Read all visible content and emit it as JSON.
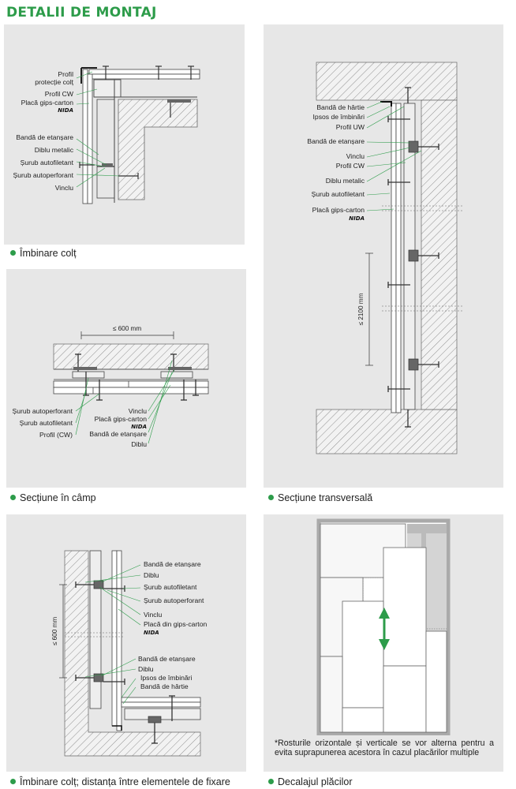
{
  "page": {
    "title": "DETALII DE MONTAJ",
    "accent": "#2d9c4a"
  },
  "brand": "NIDA",
  "panels": {
    "p1": {
      "caption": "Îmbinare colț",
      "labels": [
        "Profil",
        "protecție colț",
        "Profil CW",
        "Placă gips-carton",
        "Bandă de etanșare",
        "Diblu metalic",
        "Șurub autofiletant",
        "Șurub autoperforant",
        "Vinclu"
      ]
    },
    "p2": {
      "caption": "Secțiune în câmp",
      "dimension": "≤ 600 mm",
      "labels_left": [
        "Șurub autoperforant",
        "Șurub autofiletant",
        "Profil (CW)"
      ],
      "labels_right": [
        "Vinclu",
        "Placă gips-carton",
        "Bandă de etanșare",
        "Diblu"
      ]
    },
    "p3": {
      "caption": "Secțiune transversală",
      "dimension": "≤ 2100 mm",
      "labels": [
        "Bandă de hârtie",
        "Ipsos de îmbinări",
        "Profil UW",
        "Bandă de etanșare",
        "Vinclu",
        "Profil CW",
        "Diblu metalic",
        "Șurub autofiletant",
        "Placă gips-carton"
      ]
    },
    "p4": {
      "caption": "Îmbinare colț; distanța între elementele de fixare",
      "dimension": "≤ 600 mm",
      "labels_top": [
        "Bandă de etanșare",
        "Diblu",
        "Șurub autofiletant",
        "Șurub autoperforant",
        "Vinclu",
        "Placă din gips-carton"
      ],
      "labels_bottom": [
        "Bandă de etanșare",
        "Diblu",
        "Ipsos de îmbinări",
        "Bandă de hârtie"
      ]
    },
    "p5": {
      "caption": "Decalajul plăcilor",
      "note": "*Rosturile orizontale și verticale se vor alterna pentru a evita suprapunerea acestora în cazul placărilor multiple"
    }
  }
}
